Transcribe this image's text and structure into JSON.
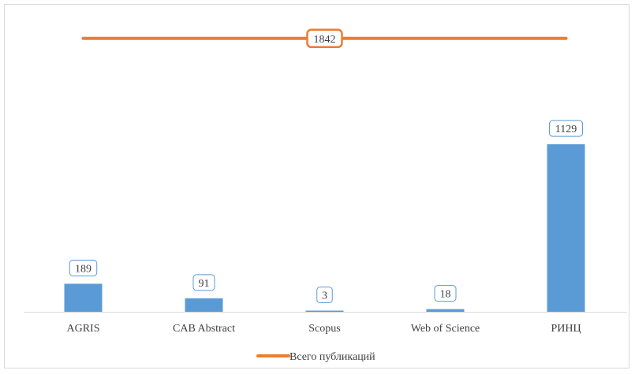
{
  "chart_data": {
    "type": "bar",
    "title": "",
    "xlabel": "",
    "ylabel": "",
    "categories": [
      "AGRIS",
      "CAB Abstract",
      "Scopus",
      "Web of Science",
      "РИНЦ"
    ],
    "series": [
      {
        "name": "",
        "type": "bar",
        "values": [
          189,
          91,
          3,
          18,
          1129
        ],
        "color": "#5b9bd5"
      },
      {
        "name": "Всего публикаций",
        "type": "line",
        "value": 1842,
        "value_label": "1842",
        "color": "#ed7d31"
      }
    ],
    "value_labels": [
      "189",
      "91",
      "3",
      "18",
      "1129"
    ],
    "ylim": [
      0,
      2000
    ],
    "grid": false,
    "legend": {
      "position": "bottom",
      "entries": [
        "Всего публикаций"
      ]
    }
  }
}
